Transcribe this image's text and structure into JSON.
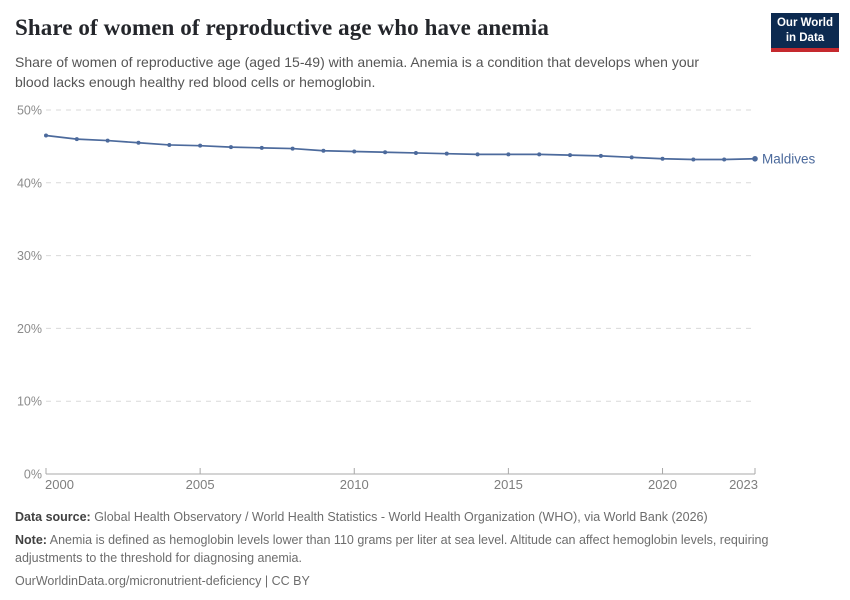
{
  "header": {
    "title": "Share of women of reproductive age who have anemia",
    "subtitle": "Share of women of reproductive age (aged 15-49) with anemia. Anemia is a condition that develops when your blood lacks enough healthy red blood cells or hemoglobin.",
    "logo": {
      "line1": "Our World",
      "line2": "in Data",
      "bg_color": "#0C2A50",
      "accent_color": "#C5292E"
    }
  },
  "chart_data": {
    "type": "line",
    "title": "Share of women of reproductive age who have anemia",
    "x": [
      2000,
      2001,
      2002,
      2003,
      2004,
      2005,
      2006,
      2007,
      2008,
      2009,
      2010,
      2011,
      2012,
      2013,
      2014,
      2015,
      2016,
      2017,
      2018,
      2019,
      2020,
      2021,
      2022,
      2023
    ],
    "series": [
      {
        "name": "Maldives",
        "color": "#4C6A9C",
        "values": [
          46.5,
          46.0,
          45.8,
          45.5,
          45.2,
          45.1,
          44.9,
          44.8,
          44.7,
          44.4,
          44.3,
          44.2,
          44.1,
          44.0,
          43.9,
          43.9,
          43.9,
          43.8,
          43.7,
          43.5,
          43.3,
          43.2,
          43.2,
          43.3
        ]
      }
    ],
    "xlim": [
      2000,
      2023
    ],
    "ylim": [
      0,
      50
    ],
    "yticks": [
      0,
      10,
      20,
      30,
      40,
      50
    ],
    "ytick_labels": [
      "0%",
      "10%",
      "20%",
      "30%",
      "40%",
      "50%"
    ],
    "xticks": [
      2000,
      2005,
      2010,
      2015,
      2020,
      2023
    ],
    "xtick_labels": [
      "2000",
      "2005",
      "2010",
      "2015",
      "2020",
      "2023"
    ],
    "unit": "%",
    "grid": "horizontal-dashed",
    "legend": "end-of-line-label",
    "end_label": "Maldives"
  },
  "footer": {
    "data_source_label": "Data source:",
    "data_source_text": " Global Health Observatory / World Health Statistics - World Health Organization (WHO), via World Bank (2026)",
    "note_label": "Note:",
    "note_text": " Anemia is defined as hemoglobin levels lower than 110 grams per liter at sea level. Altitude can affect hemoglobin levels, requiring adjustments to the threshold for diagnosing anemia.",
    "license": "OurWorldinData.org/micronutrient-deficiency | CC BY"
  }
}
